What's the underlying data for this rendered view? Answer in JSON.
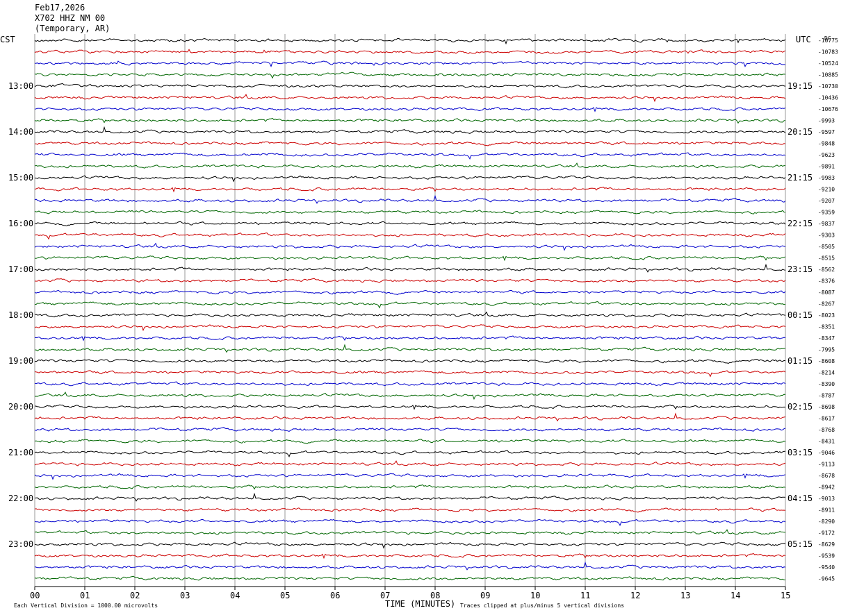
{
  "header": {
    "line1": "Feb17,2026",
    "line2": "X702 HHZ NM 00",
    "line3": "(Temporary, AR)"
  },
  "left_zone": "CST",
  "right_zone": "UTC",
  "dc_label": "DC",
  "chart_data": {
    "type": "line",
    "title": "",
    "xlabel": "TIME (MINUTES)",
    "xlim": [
      0,
      15
    ],
    "x_ticks": [
      "00",
      "01",
      "02",
      "03",
      "04",
      "05",
      "06",
      "07",
      "08",
      "09",
      "10",
      "11",
      "12",
      "13",
      "14",
      "15"
    ],
    "rows": 48,
    "rows_per_hour": 4,
    "row_colors": [
      "#000000",
      "#cc0000",
      "#0000cc",
      "#006600"
    ],
    "left_hour_labels": [
      "13:00",
      "14:00",
      "15:00",
      "16:00",
      "17:00",
      "18:00",
      "19:00",
      "20:00",
      "21:00",
      "22:00",
      "23:00"
    ],
    "right_hour_labels": [
      "19:15",
      "20:15",
      "21:15",
      "22:15",
      "23:15",
      "00:15",
      "01:15",
      "02:15",
      "03:15",
      "04:15",
      "05:15"
    ],
    "dc_offsets": [
      "-10775",
      "-10783",
      "-10524",
      "-10885",
      "-10730",
      "-10436",
      "-10676",
      "-9993",
      "-9597",
      "-9848",
      "-9623",
      "-9891",
      "-9983",
      "-9210",
      "-9207",
      "-9359",
      "-9837",
      "-9303",
      "-8505",
      "-8515",
      "-8562",
      "-8376",
      "-8087",
      "-8267",
      "-8023",
      "-8351",
      "-8347",
      "-7995",
      "-8608",
      "-8214",
      "-8390",
      "-8787",
      "-8698",
      "-8617",
      "-8768",
      "-8431",
      "-9046",
      "-9113",
      "-8678",
      "-8942",
      "-9013",
      "-8911",
      "-8290",
      "-9172",
      "-8629",
      "-9539",
      "-9540",
      "-9645"
    ],
    "scale_note": "Each Vertical Division = 1000.00 microvolts",
    "clip_note": "Traces clipped at plus/minus 5 vertical divisions"
  }
}
